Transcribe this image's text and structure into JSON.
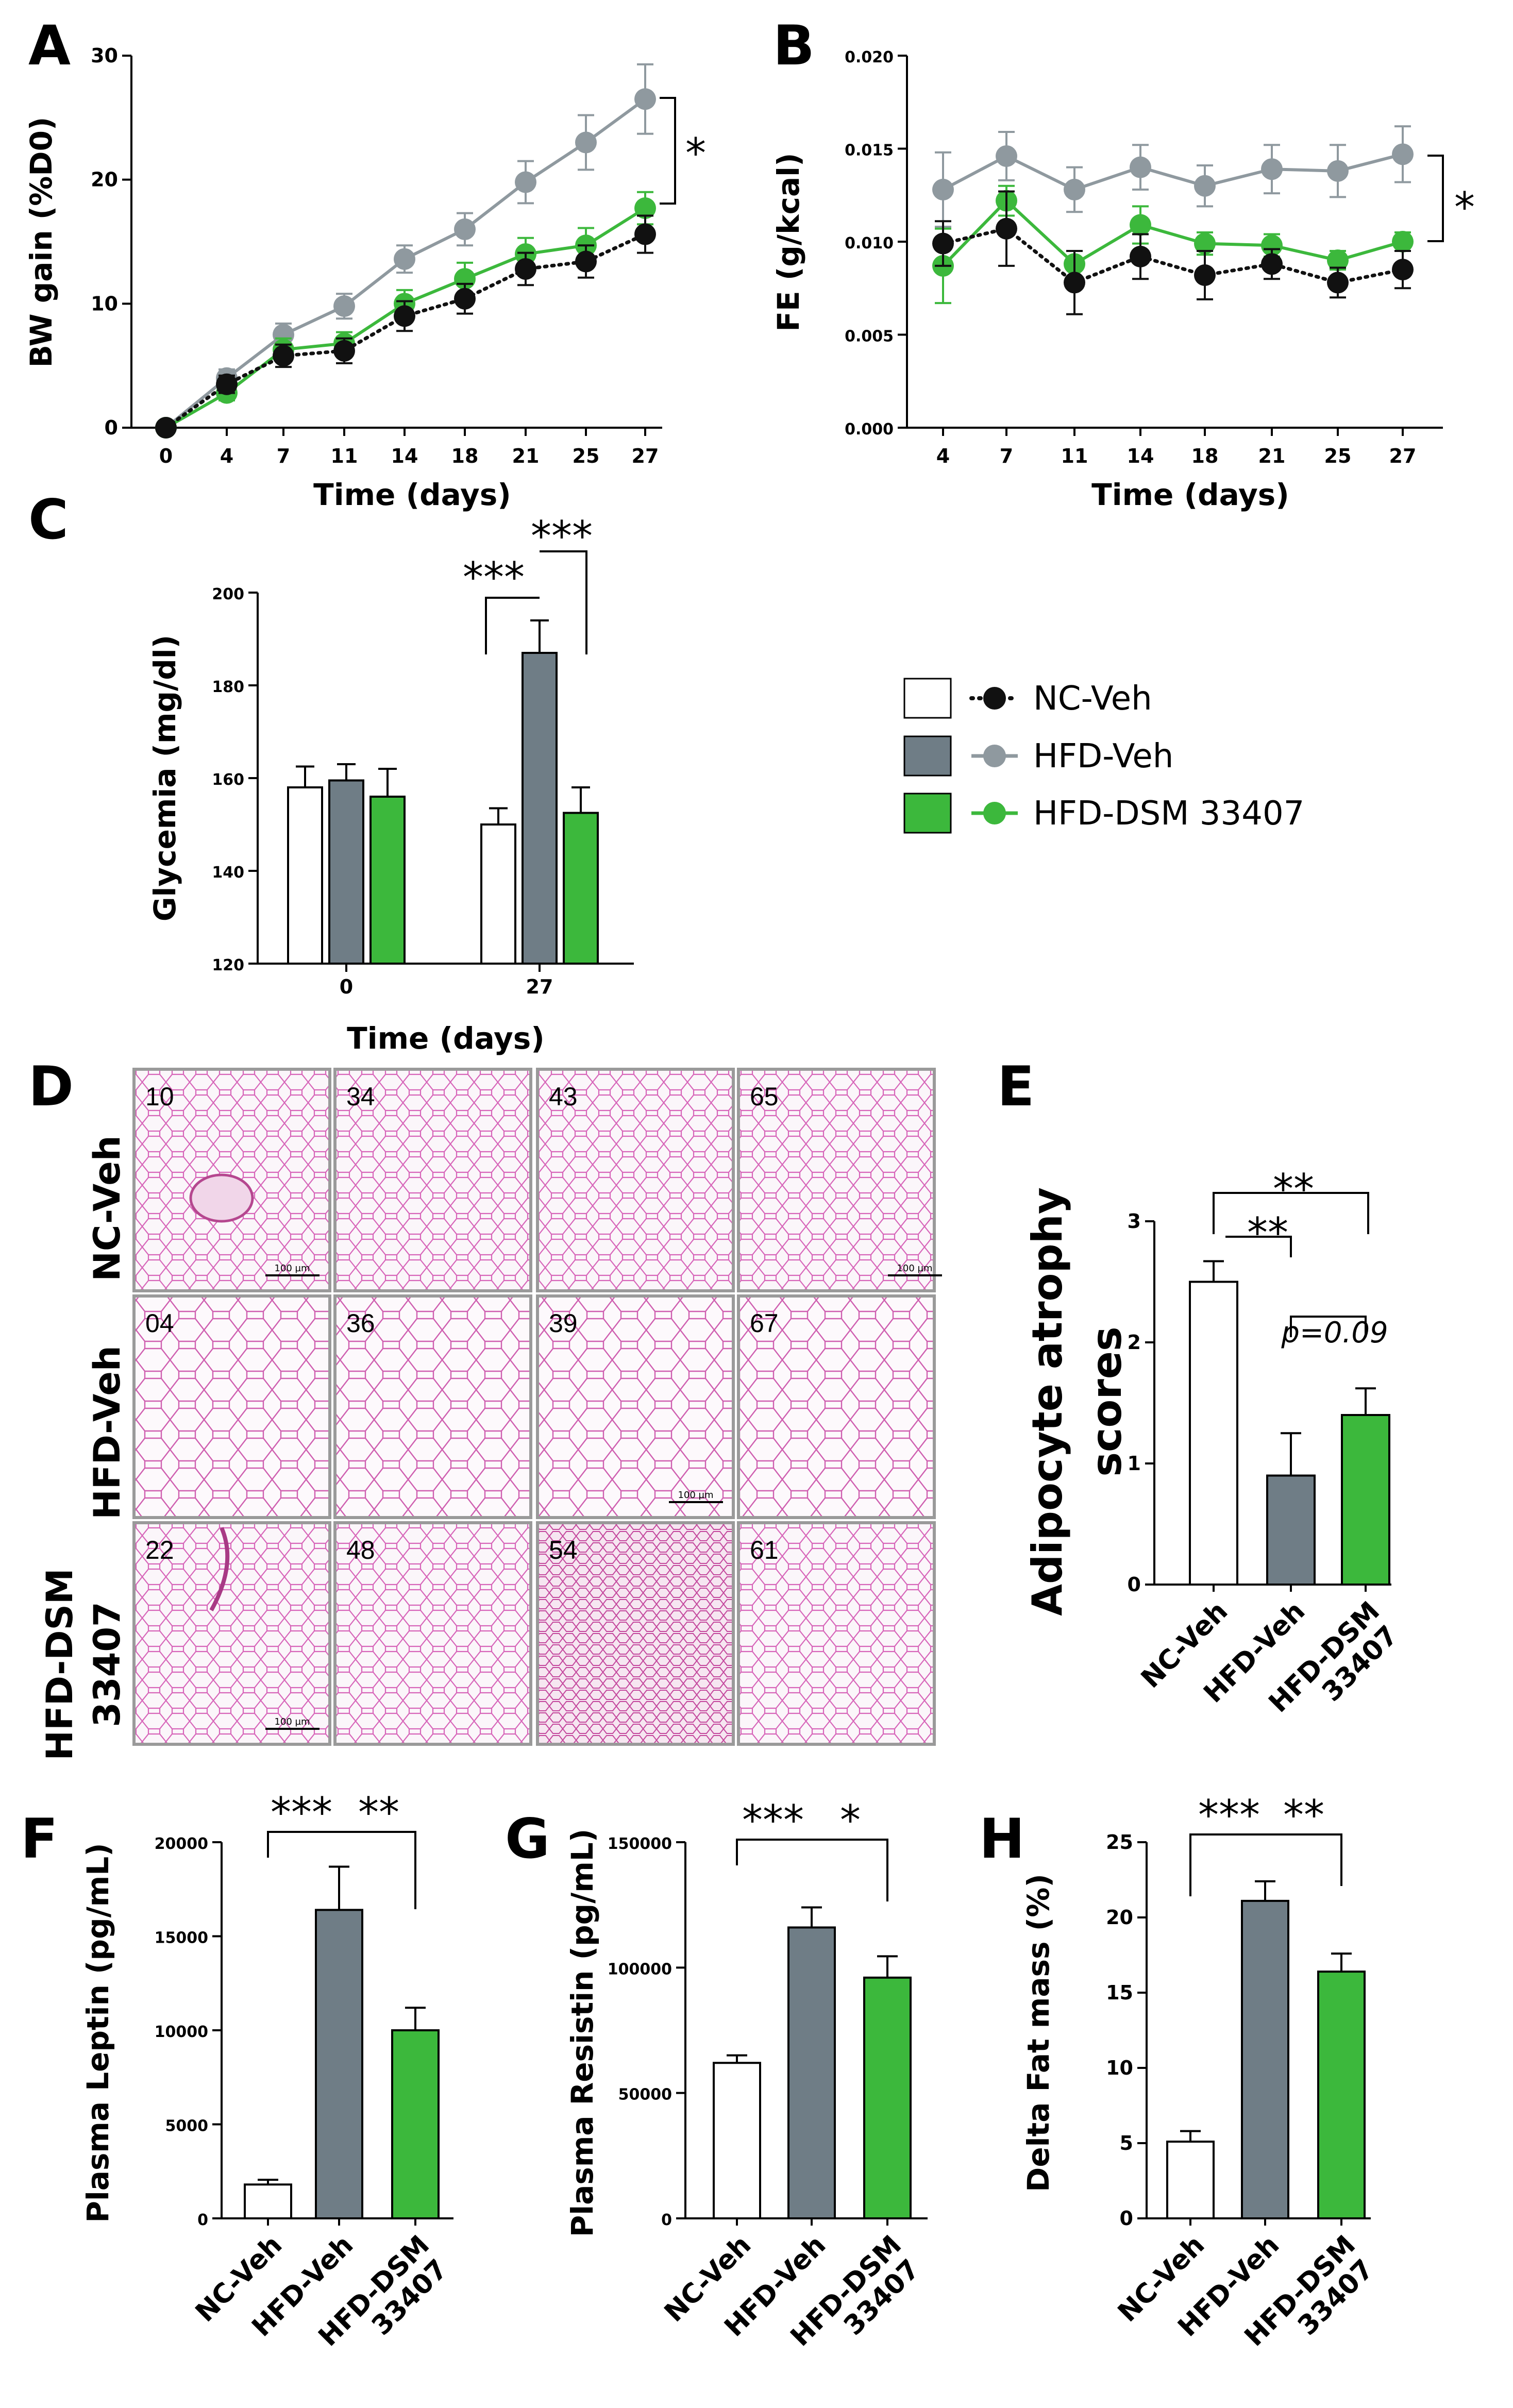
{
  "colors": {
    "nc": "#ffffff",
    "nc_marker": "#111111",
    "hfd": "#6f7d86",
    "hfd_marker": "#8f999f",
    "dsm": "#3cb83c"
  },
  "legend": {
    "items": [
      {
        "label": "NC-Veh",
        "swatch": "#ffffff",
        "marker": "#111111",
        "dotted": true
      },
      {
        "label": "HFD-Veh",
        "swatch": "#6f7d86",
        "marker": "#8f999f",
        "dotted": false
      },
      {
        "label": "HFD-DSM 33407",
        "swatch": "#3cb83c",
        "marker": "#3cb83c",
        "dotted": false
      }
    ]
  },
  "panels": {
    "A": "A",
    "B": "B",
    "C": "C",
    "D": "D",
    "E": "E",
    "F": "F",
    "G": "G",
    "H": "H"
  },
  "histology": {
    "rows": [
      "NC-Veh",
      "HFD-Veh",
      "HFD-DSM 33407"
    ],
    "ids": [
      [
        "10",
        "34",
        "43",
        "65"
      ],
      [
        "04",
        "36",
        "39",
        "67"
      ],
      [
        "22",
        "48",
        "54",
        "61"
      ]
    ],
    "scale_bar": "100 µm"
  },
  "chart_data": [
    {
      "id": "A",
      "type": "line",
      "xlabel": "Time (days)",
      "ylabel": "BW gain (%D0)",
      "x": [
        0,
        4,
        7,
        11,
        14,
        18,
        21,
        25,
        27
      ],
      "ylim": [
        0,
        30
      ],
      "yticks": [
        0,
        10,
        20,
        30
      ],
      "series": [
        {
          "name": "NC-Veh",
          "values": [
            0,
            3.5,
            5.8,
            6.2,
            9.0,
            10.4,
            12.8,
            13.4,
            15.6
          ],
          "err": [
            0,
            0.7,
            0.9,
            1.0,
            1.2,
            1.2,
            1.3,
            1.3,
            1.5
          ]
        },
        {
          "name": "HFD-Veh",
          "values": [
            0,
            4.0,
            7.5,
            9.8,
            13.6,
            16.0,
            19.8,
            23.0,
            26.5
          ],
          "err": [
            0,
            0.7,
            0.9,
            1.0,
            1.1,
            1.3,
            1.7,
            2.2,
            2.8
          ]
        },
        {
          "name": "HFD-DSM 33407",
          "values": [
            0,
            2.8,
            6.3,
            6.8,
            10.0,
            12.0,
            14.0,
            14.7,
            17.7
          ],
          "err": [
            0,
            0.6,
            0.9,
            0.9,
            1.1,
            1.3,
            1.3,
            1.4,
            1.3
          ]
        }
      ],
      "significance": [
        "*"
      ]
    },
    {
      "id": "B",
      "type": "line",
      "xlabel": "Time (days)",
      "ylabel": "FE (g/kcal)",
      "x": [
        4,
        7,
        11,
        14,
        18,
        21,
        25,
        27
      ],
      "ylim": [
        0,
        0.02
      ],
      "yticks": [
        "0.000",
        "0.005",
        "0.010",
        "0.015",
        "0.020"
      ],
      "series": [
        {
          "name": "NC-Veh",
          "values": [
            0.0099,
            0.0107,
            0.0078,
            0.0092,
            0.0082,
            0.0088,
            0.0078,
            0.0085
          ],
          "err": [
            0.0012,
            0.002,
            0.0017,
            0.0012,
            0.0013,
            0.0008,
            0.0008,
            0.001
          ]
        },
        {
          "name": "HFD-Veh",
          "values": [
            0.0128,
            0.0146,
            0.0128,
            0.014,
            0.013,
            0.0139,
            0.0138,
            0.0147
          ],
          "err": [
            0.002,
            0.0013,
            0.0012,
            0.0012,
            0.0011,
            0.0013,
            0.0014,
            0.0015
          ]
        },
        {
          "name": "HFD-DSM 33407",
          "values": [
            0.0087,
            0.0122,
            0.0088,
            0.0109,
            0.0099,
            0.0098,
            0.009,
            0.01
          ],
          "err": [
            0.002,
            0.0008,
            0.0007,
            0.001,
            0.0006,
            0.0006,
            0.0005,
            0.0005
          ]
        }
      ],
      "significance": [
        "*"
      ]
    },
    {
      "id": "C",
      "type": "bar",
      "xlabel": "Time (days)",
      "ylabel": "Glycemia (mg/dl)",
      "categories": [
        "0",
        "27"
      ],
      "ylim": [
        120,
        200
      ],
      "yticks": [
        120,
        140,
        160,
        180,
        200
      ],
      "series": [
        {
          "name": "NC-Veh",
          "values": [
            158,
            150
          ],
          "err": [
            4.5,
            3.5
          ]
        },
        {
          "name": "HFD-Veh",
          "values": [
            159.5,
            187
          ],
          "err": [
            3.5,
            7
          ]
        },
        {
          "name": "HFD-DSM 33407",
          "values": [
            156,
            152.5
          ],
          "err": [
            6,
            5.5
          ]
        }
      ],
      "significance": [
        "***",
        "***"
      ]
    },
    {
      "id": "E",
      "type": "bar",
      "ylabel": "Adipocyte atrophy scores",
      "categories": [
        "NC-Veh",
        "HFD-Veh",
        "HFD-DSM 33407"
      ],
      "ylim": [
        0,
        3
      ],
      "yticks": [
        0,
        1,
        2,
        3
      ],
      "values": [
        2.5,
        0.9,
        1.4
      ],
      "err": [
        0.17,
        0.35,
        0.22
      ],
      "significance": [
        "**",
        "**",
        "p=0.09"
      ]
    },
    {
      "id": "F",
      "type": "bar",
      "ylabel": "Plasma Leptin  (pg/mL)",
      "categories": [
        "NC-Veh",
        "HFD-Veh",
        "HFD-DSM 33407"
      ],
      "ylim": [
        0,
        20000
      ],
      "yticks": [
        0,
        5000,
        10000,
        15000,
        20000
      ],
      "values": [
        1800,
        16400,
        10000
      ],
      "err": [
        250,
        2300,
        1200
      ],
      "significance": [
        "***",
        "**"
      ]
    },
    {
      "id": "G",
      "type": "bar",
      "ylabel": "Plasma Resistin (pg/mL)",
      "categories": [
        "NC-Veh",
        "HFD-Veh",
        "HFD-DSM 33407"
      ],
      "ylim": [
        0,
        150000
      ],
      "yticks": [
        0,
        50000,
        100000,
        150000
      ],
      "values": [
        62000,
        116000,
        96000
      ],
      "err": [
        3000,
        8000,
        8500
      ],
      "significance": [
        "***",
        "*"
      ]
    },
    {
      "id": "H",
      "type": "bar",
      "ylabel": "Delta Fat mass (%)",
      "categories": [
        "NC-Veh",
        "HFD-Veh",
        "HFD-DSM 33407"
      ],
      "ylim": [
        0,
        25
      ],
      "yticks": [
        0,
        5,
        10,
        15,
        20,
        25
      ],
      "values": [
        5.1,
        21.1,
        16.4
      ],
      "err": [
        0.7,
        1.3,
        1.2
      ],
      "significance": [
        "***",
        "**"
      ]
    }
  ]
}
